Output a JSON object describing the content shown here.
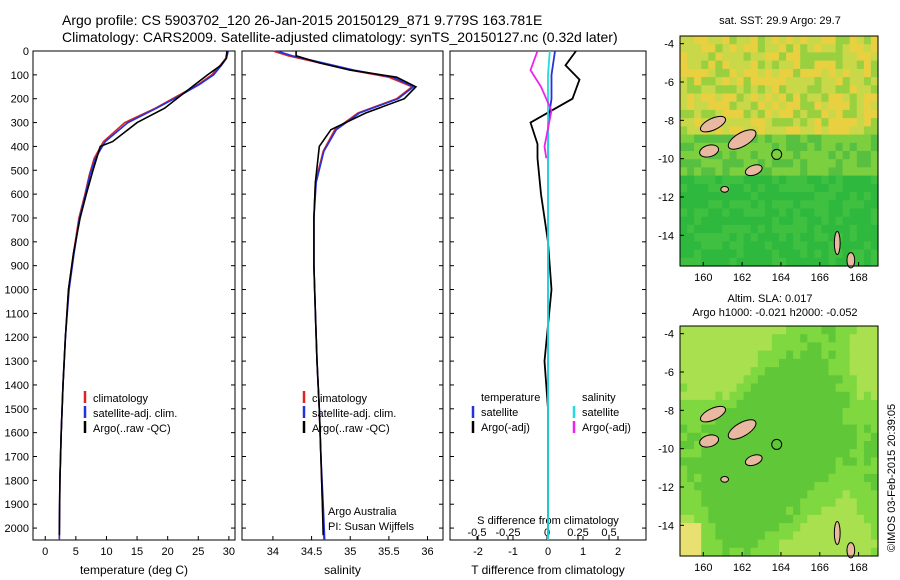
{
  "header": {
    "line1": "Argo profile: CS 5903702_120 26-Jan-2015 20150129_871 9.779S 163.781E",
    "line2": "Climatology: CARS2009. Satellite-adjusted climatology: synTS_20150127.nc (0.32d later)"
  },
  "credit": "©IMOS 03-Feb-2015 20:39:05",
  "colors": {
    "climatology": "#dd2222",
    "satellite": "#2233dd",
    "argo": "#000000",
    "salinity_satellite": "#22dddd",
    "salinity_argo": "#ee22ee",
    "land": "#e8b8a0"
  },
  "chart_data": [
    {
      "type": "line",
      "xlabel": "temperature (deg C)",
      "xlim": [
        -2,
        31
      ],
      "xticks": [
        0,
        5,
        10,
        15,
        20,
        25,
        30
      ],
      "ylim": [
        0,
        2050
      ],
      "yticks": [
        0,
        100,
        200,
        300,
        400,
        500,
        600,
        700,
        800,
        900,
        1000,
        1100,
        1200,
        1300,
        1400,
        1500,
        1600,
        1700,
        1800,
        1900,
        2000
      ],
      "legend": [
        "climatology",
        "satellite-adj. clim.",
        "Argo(..raw -QC)"
      ],
      "series": [
        {
          "name": "climatology",
          "color_key": "climatology",
          "x": [
            29.7,
            29.5,
            28.6,
            27.2,
            25.0,
            21.5,
            18.0,
            13.0,
            9.5,
            8.0,
            7.2,
            6.5,
            5.5,
            4.6,
            3.8,
            3.3,
            2.9,
            2.6,
            2.4,
            2.3
          ],
          "y": [
            0,
            30,
            60,
            100,
            140,
            190,
            240,
            300,
            380,
            450,
            520,
            600,
            700,
            850,
            1000,
            1200,
            1400,
            1600,
            1800,
            2050
          ]
        },
        {
          "name": "satellite-adj. clim.",
          "color_key": "satellite",
          "x": [
            29.9,
            29.6,
            28.8,
            27.5,
            25.2,
            21.8,
            18.2,
            13.5,
            9.8,
            8.2,
            7.3,
            6.6,
            5.6,
            4.7,
            3.9,
            3.3,
            2.9,
            2.6,
            2.4,
            2.3
          ],
          "y": [
            0,
            30,
            60,
            100,
            140,
            190,
            240,
            300,
            380,
            450,
            520,
            600,
            700,
            850,
            1000,
            1200,
            1400,
            1600,
            1800,
            2050
          ]
        },
        {
          "name": "Argo(..raw -QC)",
          "color_key": "argo",
          "x": [
            29.7,
            29.6,
            28.7,
            26.5,
            24.5,
            22.0,
            19.5,
            15.0,
            11.0,
            9.0,
            7.8,
            6.7,
            5.7,
            4.6,
            3.8,
            3.3,
            2.9,
            2.6,
            2.4,
            2.3
          ],
          "y": [
            0,
            30,
            60,
            100,
            140,
            190,
            240,
            300,
            380,
            400,
            500,
            600,
            700,
            850,
            1000,
            1200,
            1400,
            1600,
            1800,
            2030
          ]
        }
      ]
    },
    {
      "type": "line",
      "xlabel": "salinity",
      "xlim": [
        33.6,
        36.2
      ],
      "xticks": [
        34,
        34.5,
        35,
        35.5,
        36
      ],
      "xticklabels": [
        "34",
        "34.5",
        "35",
        "35.5",
        "36"
      ],
      "ylim": [
        0,
        2050
      ],
      "legend": [
        "climatology",
        "satellite-adj. clim.",
        "Argo(..raw -QC)"
      ],
      "annotation": [
        "Argo Australia",
        "PI: Susan Wijffels"
      ],
      "series": [
        {
          "name": "climatology",
          "color_key": "climatology",
          "x": [
            34.0,
            34.2,
            34.6,
            35.0,
            35.5,
            35.8,
            35.6,
            35.1,
            34.8,
            34.65,
            34.55,
            34.53,
            34.53,
            34.55,
            34.57,
            34.6,
            34.62,
            34.64,
            34.66
          ],
          "y": [
            0,
            20,
            50,
            80,
            110,
            150,
            200,
            260,
            330,
            420,
            550,
            700,
            900,
            1100,
            1300,
            1500,
            1700,
            1900,
            2050
          ]
        },
        {
          "name": "satellite-adj. clim.",
          "color_key": "satellite",
          "x": [
            34.05,
            34.25,
            34.65,
            35.05,
            35.55,
            35.82,
            35.62,
            35.12,
            34.82,
            34.66,
            34.56,
            34.53,
            34.53,
            34.55,
            34.57,
            34.6,
            34.62,
            34.65,
            34.67
          ],
          "y": [
            0,
            20,
            50,
            80,
            110,
            150,
            200,
            260,
            330,
            420,
            550,
            700,
            900,
            1100,
            1300,
            1500,
            1700,
            1900,
            2050
          ]
        },
        {
          "name": "Argo(..raw -QC)",
          "color_key": "argo",
          "x": [
            34.3,
            34.3,
            34.6,
            35.0,
            35.6,
            35.85,
            35.7,
            35.2,
            34.75,
            34.6,
            34.55,
            34.53,
            34.53,
            34.55,
            34.57,
            34.6,
            34.62,
            34.64,
            34.65
          ],
          "y": [
            0,
            20,
            50,
            80,
            110,
            150,
            200,
            260,
            330,
            400,
            550,
            700,
            900,
            1100,
            1300,
            1500,
            1700,
            1900,
            2030
          ]
        }
      ]
    },
    {
      "type": "line",
      "xlabel": "T difference from climatology",
      "xlabel2": "S difference from climatology",
      "xlim": [
        -2.8,
        2.8
      ],
      "xticks": [
        -2,
        -1,
        0,
        1,
        2
      ],
      "xticks2": [
        -0.5,
        -0.25,
        0,
        0.25,
        0.5
      ],
      "xticklabels2": [
        "-0.5",
        "-0.25",
        "0",
        "0.25",
        "0.5"
      ],
      "ylim": [
        0,
        2050
      ],
      "legend_title_t": "temperature",
      "legend_title_s": "salinity",
      "legend_t": [
        "satellite",
        "Argo(-adj)"
      ],
      "legend_s": [
        "satellite",
        "Argo(-adj)"
      ],
      "series": [
        {
          "name": "satellite",
          "color_key": "satellite",
          "x": [
            0.2,
            0.1,
            0.1,
            0.0,
            0.0,
            0.0,
            0.0,
            0.0,
            0.0,
            0.0
          ],
          "y": [
            0,
            100,
            200,
            300,
            400,
            500,
            800,
            1200,
            1600,
            2050
          ]
        },
        {
          "name": "Argo(-adj)",
          "color_key": "argo",
          "x": [
            0.8,
            0.5,
            0.9,
            0.7,
            -0.5,
            -0.3,
            -0.3,
            -0.2,
            0.0,
            0.1,
            -0.1,
            0.0,
            0.0,
            0.0
          ],
          "y": [
            0,
            60,
            120,
            200,
            300,
            390,
            450,
            600,
            800,
            1000,
            1300,
            1500,
            1800,
            2030
          ]
        },
        {
          "name": "salinity satellite",
          "color_key": "salinity_satellite",
          "x": [
            0.05,
            0.0,
            0.0,
            0.0,
            0.0,
            0.0,
            0.0
          ],
          "y": [
            0,
            100,
            300,
            600,
            1000,
            1500,
            2050
          ]
        },
        {
          "name": "salinity Argo(-adj)",
          "color_key": "salinity_argo",
          "x": [
            -0.3,
            -0.5,
            -0.2,
            0.1,
            -0.1,
            -0.05
          ],
          "y": [
            0,
            80,
            150,
            250,
            400,
            450
          ]
        }
      ]
    },
    {
      "type": "heatmap",
      "title": "sat. SST: 29.9  Argo: 29.7",
      "xticks": [
        160,
        162,
        164,
        166,
        168
      ],
      "yticks": [
        -4,
        -6,
        -8,
        -10,
        -12,
        -14
      ],
      "xlim": [
        158.8,
        169.0
      ],
      "ylim": [
        -15.6,
        -3.6
      ],
      "marker": {
        "lon": 163.781,
        "lat": -9.779
      }
    },
    {
      "type": "heatmap",
      "title": "Altim. SLA: 0.017",
      "subtitle": "Argo h1000: -0.021 h2000: -0.052",
      "xticks": [
        160,
        162,
        164,
        166,
        168
      ],
      "yticks": [
        -4,
        -6,
        -8,
        -10,
        -12,
        -14
      ],
      "xlim": [
        158.8,
        169.0
      ],
      "ylim": [
        -15.6,
        -3.6
      ],
      "marker": {
        "lon": 163.781,
        "lat": -9.779
      }
    }
  ]
}
